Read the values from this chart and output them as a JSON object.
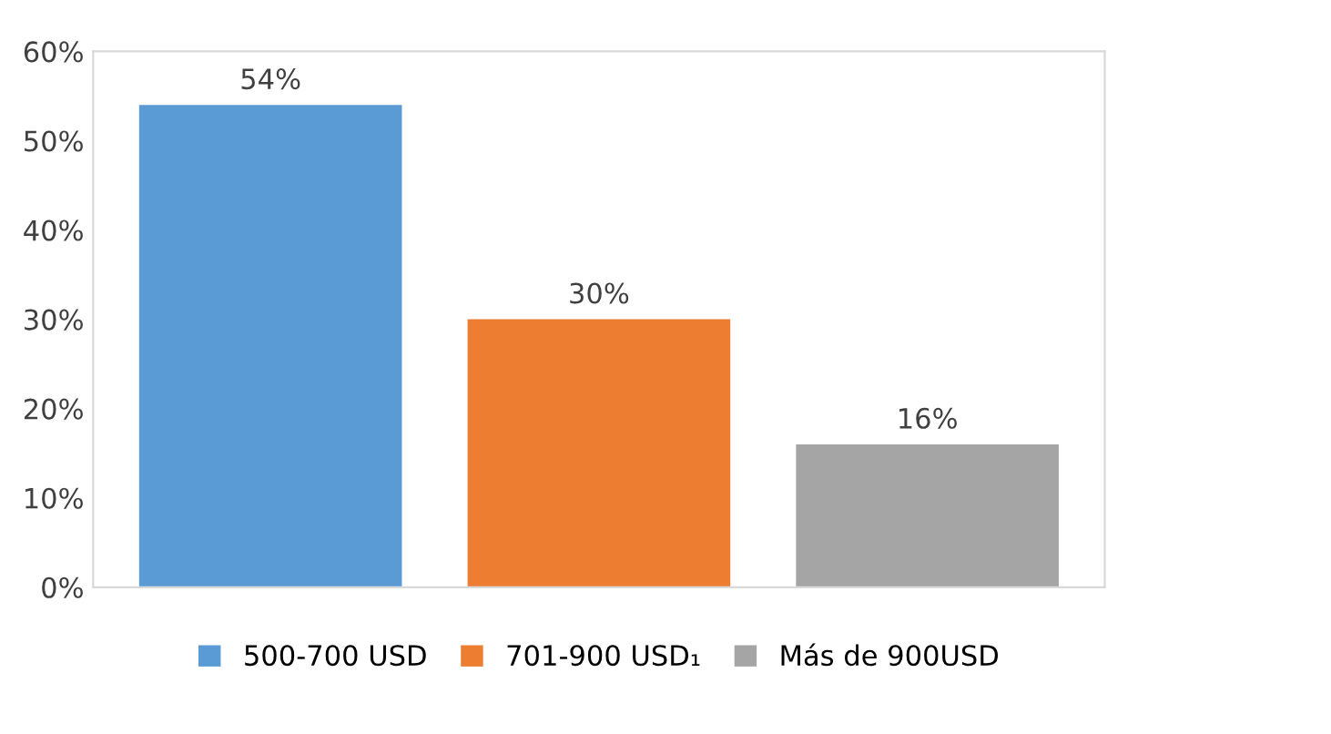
{
  "chart_data": {
    "type": "bar",
    "categories": [
      null
    ],
    "series": [
      {
        "name": "500-700 USD",
        "color": "#5b9bd5",
        "values": [
          54
        ],
        "value_labels": [
          "54%"
        ]
      },
      {
        "name": "701-900 USD₁",
        "color": "#ed7d31",
        "values": [
          30
        ],
        "value_labels": [
          "30%"
        ]
      },
      {
        "name": "Más de 900USD",
        "color": "#a5a5a5",
        "values": [
          16
        ],
        "value_labels": [
          "16%"
        ]
      }
    ],
    "ylim": [
      0,
      60
    ],
    "yticks": [
      {
        "value": 0,
        "label": "0%"
      },
      {
        "value": 10,
        "label": "10%"
      },
      {
        "value": 20,
        "label": "20%"
      },
      {
        "value": 30,
        "label": "30%"
      },
      {
        "value": 40,
        "label": "40%"
      },
      {
        "value": 50,
        "label": "50%"
      },
      {
        "value": 60,
        "label": "60%"
      }
    ],
    "grid": false,
    "legend": "bottom"
  }
}
